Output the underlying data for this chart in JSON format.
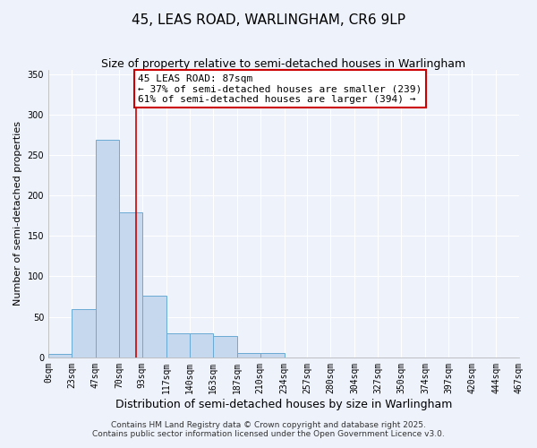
{
  "title": "45, LEAS ROAD, WARLINGHAM, CR6 9LP",
  "subtitle": "Size of property relative to semi-detached houses in Warlingham",
  "xlabel": "Distribution of semi-detached houses by size in Warlingham",
  "ylabel": "Number of semi-detached properties",
  "bar_edges": [
    0,
    23,
    47,
    70,
    93,
    117,
    140,
    163,
    187,
    210,
    234,
    257,
    280,
    304,
    327,
    350,
    374,
    397,
    420,
    444,
    467
  ],
  "bar_heights": [
    4,
    60,
    269,
    179,
    76,
    30,
    30,
    26,
    5,
    5,
    0,
    0,
    0,
    0,
    0,
    0,
    0,
    0,
    0,
    0
  ],
  "bar_color": "#c5d8ee",
  "bar_edge_color": "#6aaad4",
  "property_size": 87,
  "red_line_color": "#cc0000",
  "annotation_line1": "45 LEAS ROAD: 87sqm",
  "annotation_line2": "← 37% of semi-detached houses are smaller (239)",
  "annotation_line3": "61% of semi-detached houses are larger (394) →",
  "annotation_box_color": "#ffffff",
  "annotation_box_edge_color": "#cc0000",
  "ylim": [
    0,
    355
  ],
  "yticks": [
    0,
    50,
    100,
    150,
    200,
    250,
    300,
    350
  ],
  "tick_labels": [
    "0sqm",
    "23sqm",
    "47sqm",
    "70sqm",
    "93sqm",
    "117sqm",
    "140sqm",
    "163sqm",
    "187sqm",
    "210sqm",
    "234sqm",
    "257sqm",
    "280sqm",
    "304sqm",
    "327sqm",
    "350sqm",
    "374sqm",
    "397sqm",
    "420sqm",
    "444sqm",
    "467sqm"
  ],
  "background_color": "#eef2fb",
  "grid_color": "#ffffff",
  "footnote1": "Contains HM Land Registry data © Crown copyright and database right 2025.",
  "footnote2": "Contains public sector information licensed under the Open Government Licence v3.0.",
  "title_fontsize": 11,
  "subtitle_fontsize": 9,
  "xlabel_fontsize": 9,
  "ylabel_fontsize": 8,
  "tick_fontsize": 7,
  "annotation_fontsize": 8,
  "footnote_fontsize": 6.5
}
